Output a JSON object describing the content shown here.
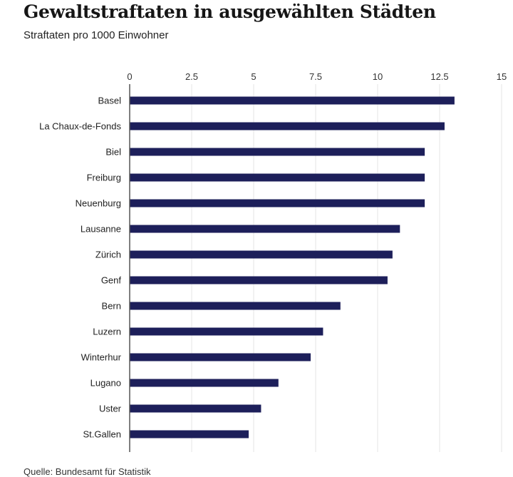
{
  "colors": {
    "bar": "#1d1f5a",
    "grid": "#e6e6e6",
    "axis": "#555555"
  },
  "source": "Quelle: Bundesamt für Statistik",
  "chart_data": {
    "type": "bar",
    "orientation": "horizontal",
    "title": "Gewaltstraftaten in ausgewählten Städten",
    "subtitle": "Straftaten pro 1000 Einwohner",
    "xlabel": "",
    "ylabel": "",
    "xlim": [
      0,
      15
    ],
    "ticks": [
      0,
      2.5,
      5,
      7.5,
      10,
      12.5,
      15
    ],
    "tick_labels": [
      "0",
      "2.5",
      "5",
      "7.5",
      "10",
      "12.5",
      "15"
    ],
    "axis_position": "top",
    "grid": true,
    "categories": [
      "Basel",
      "La Chaux-de-Fonds",
      "Biel",
      "Freiburg",
      "Neuenburg",
      "Lausanne",
      "Zürich",
      "Genf",
      "Bern",
      "Luzern",
      "Winterhur",
      "Lugano",
      "Uster",
      "St.Gallen"
    ],
    "values": [
      13.1,
      12.7,
      11.9,
      11.9,
      11.9,
      10.9,
      10.6,
      10.4,
      8.5,
      7.8,
      7.3,
      6.0,
      5.3,
      4.8
    ]
  }
}
